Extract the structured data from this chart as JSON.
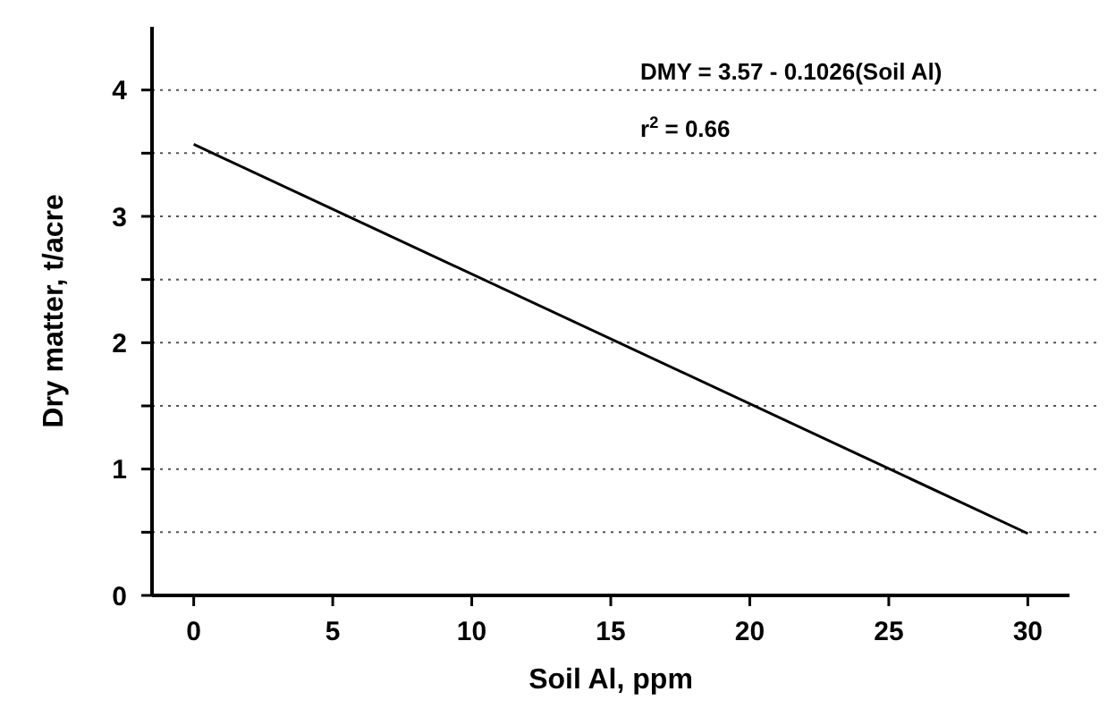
{
  "chart_data": {
    "type": "line",
    "xlabel": "Soil Al,  ppm",
    "ylabel": "Dry matter,  t/acre",
    "x": [
      0,
      30
    ],
    "series": [
      {
        "color": "#000000",
        "values": [
          3.57,
          0.49
        ]
      }
    ],
    "xlim": [
      -1.5,
      31.5
    ],
    "xticks": [
      0,
      5,
      10,
      15,
      20,
      25,
      30
    ],
    "ylim": [
      0,
      4.5
    ],
    "yticks": [
      0,
      {
        "value": 0.5,
        "label": null
      },
      1,
      {
        "value": 1.5,
        "label": null
      },
      2,
      {
        "value": 2.5,
        "label": null
      },
      3,
      {
        "value": 3.5,
        "label": null
      },
      4
    ],
    "grid": "y",
    "marker": "none",
    "line_style": "solid",
    "annotations": [
      "DMY = 3.57 - 0.1026(Soil Al)",
      "r$^{2}$ = 0.66"
    ]
  }
}
